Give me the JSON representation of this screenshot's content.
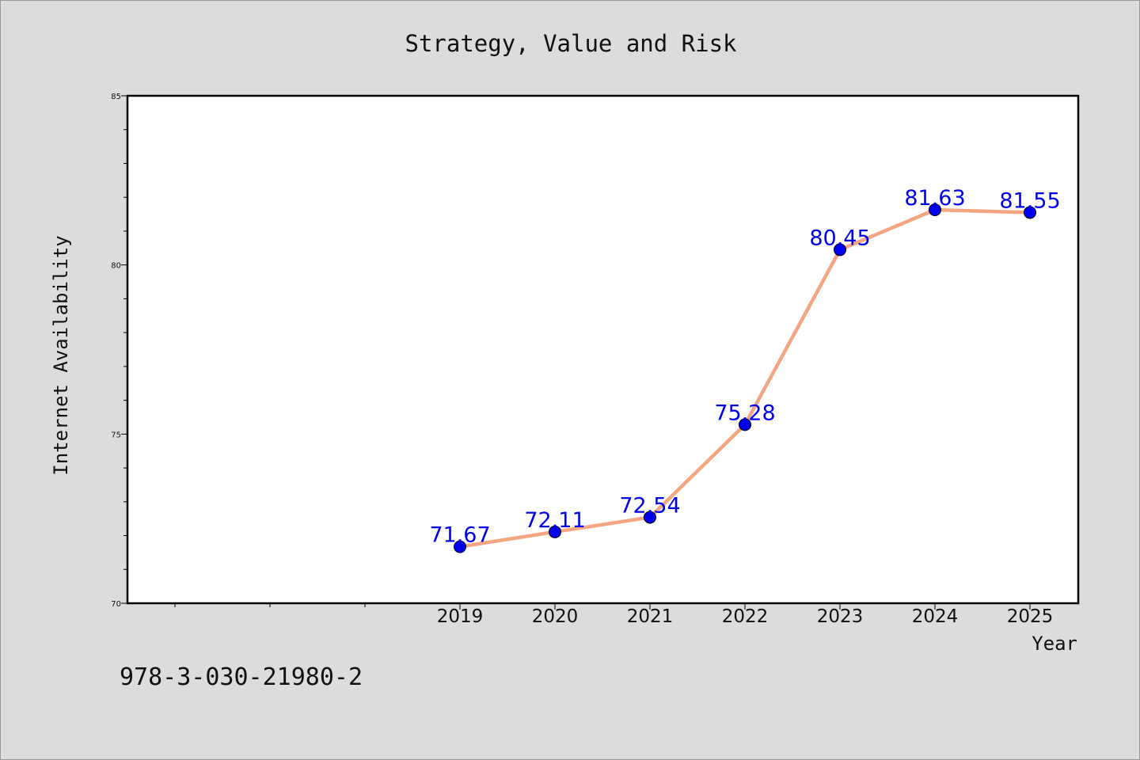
{
  "chart_data": {
    "type": "line",
    "title": "Strategy, Value and Risk",
    "xlabel": "Year",
    "ylabel": "Internet Availability",
    "categories": [
      "2019",
      "2020",
      "2021",
      "2022",
      "2023",
      "2024",
      "2025"
    ],
    "values": [
      71.67,
      72.11,
      72.54,
      75.28,
      80.45,
      81.63,
      81.55
    ],
    "data_labels": [
      "71.67",
      "72.11",
      "72.54",
      "75.28",
      "80.45",
      "81.63",
      "81.55"
    ],
    "ylim": [
      70,
      85
    ],
    "y_ticks": [
      "70",
      "75",
      "80",
      "85"
    ],
    "grid": false,
    "line_color": "#f4a582",
    "marker_color": "#0000ee",
    "label_color": "#0000ee"
  },
  "annotation": {
    "isbn": "978-3-030-21980-2"
  }
}
